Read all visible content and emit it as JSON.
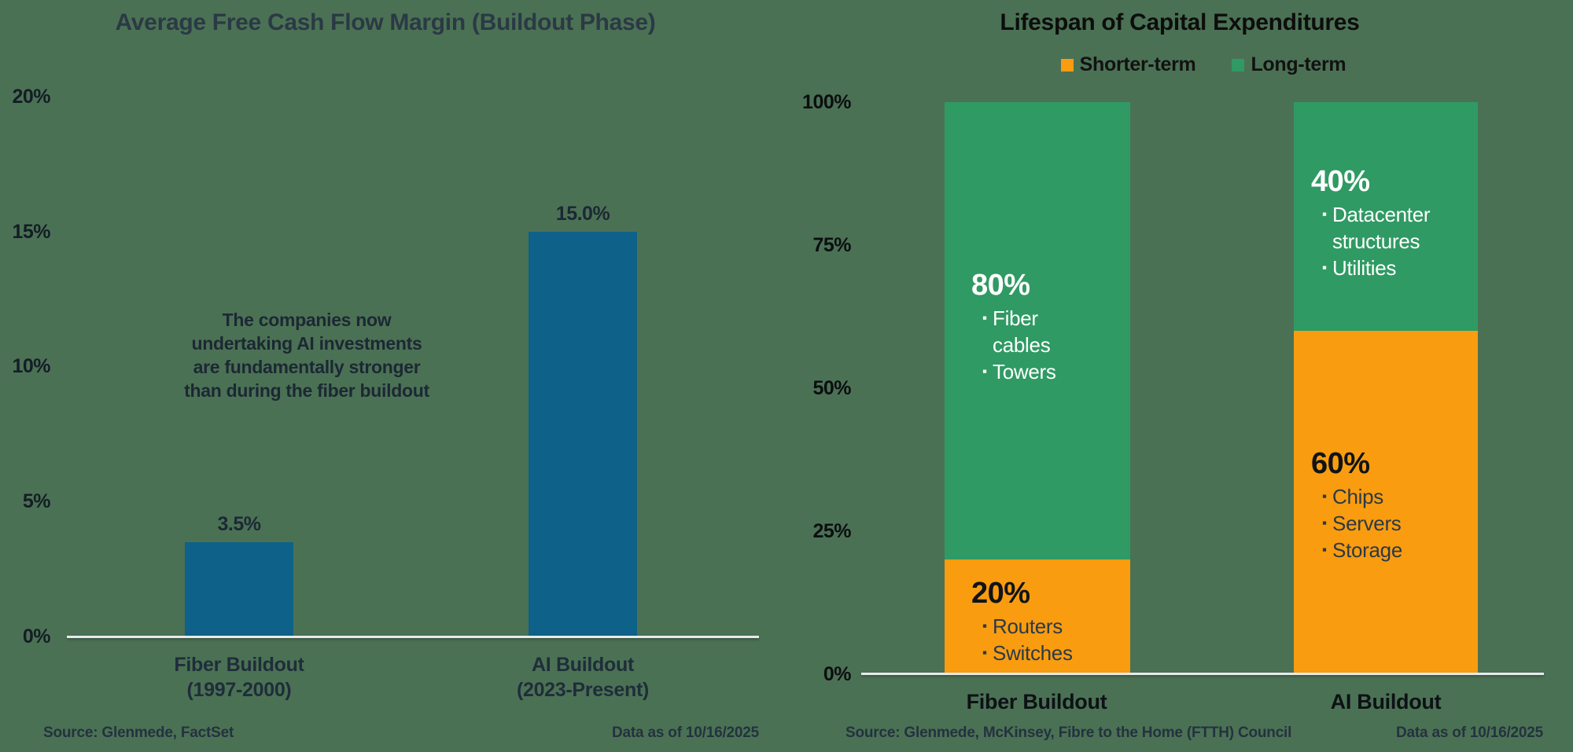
{
  "colors": {
    "background": "#4B7154",
    "bar_blue": "#0E6189",
    "shorter_term_orange": "#F99C0F",
    "long_term_green": "#2F9A63",
    "dark_text": "#1C2834",
    "white_text": "#FFFFFF",
    "axis_line": "#E6EAED"
  },
  "ui": {
    "icons": {
      "bullet": "▪"
    },
    "left": {
      "annotation_lines": [
        "The companies now",
        "undertaking AI investments",
        "are fundamentally stronger",
        "than during the fiber buildout"
      ],
      "x_labels": [
        {
          "line1": "Fiber Buildout",
          "line2": "(1997-2000)"
        },
        {
          "line1": "AI Buildout",
          "line2": "(2023-Present)"
        }
      ]
    },
    "right": {
      "pct_labels": {
        "fiber_long": "80%",
        "fiber_short": "20%",
        "ai_long": "40%",
        "ai_short": "60%"
      }
    }
  },
  "chart_data": [
    {
      "type": "bar",
      "title": "Average Free Cash Flow Margin (Buildout Phase)",
      "categories": [
        "Fiber Buildout (1997-2000)",
        "AI Buildout (2023-Present)"
      ],
      "values": [
        3.5,
        15.0
      ],
      "data_labels": [
        "3.5%",
        "15.0%"
      ],
      "xlabel": "",
      "ylabel": "",
      "ylim": [
        0,
        20
      ],
      "yticks": [
        "0%",
        "5%",
        "10%",
        "15%",
        "20%"
      ],
      "grid": false,
      "bar_color": "#0E6189",
      "annotation": "The companies now undertaking AI investments are fundamentally stronger than during the fiber buildout",
      "source": "Source: Glenmede, FactSet",
      "data_as_of": "Data as of 10/16/2025"
    },
    {
      "type": "bar",
      "subtype": "stacked",
      "title": "Lifespan of Capital Expenditures",
      "categories": [
        "Fiber Buildout",
        "AI Buildout"
      ],
      "series": [
        {
          "name": "Shorter-term",
          "color": "#F99C0F",
          "values": [
            20,
            60
          ],
          "items": [
            [
              "Routers",
              "Switches"
            ],
            [
              "Chips",
              "Servers",
              "Storage"
            ]
          ]
        },
        {
          "name": "Long-term",
          "color": "#2F9A63",
          "values": [
            80,
            40
          ],
          "items": [
            [
              "Fiber cables",
              "Towers"
            ],
            [
              "Datacenter structures",
              "Utilities"
            ]
          ]
        }
      ],
      "ylim": [
        0,
        100
      ],
      "yticks": [
        "0%",
        "25%",
        "50%",
        "75%",
        "100%"
      ],
      "legend_position": "top",
      "grid": false,
      "source": "Source: Glenmede, McKinsey, Fibre to the Home (FTTH) Council",
      "data_as_of": "Data as of 10/16/2025"
    }
  ]
}
